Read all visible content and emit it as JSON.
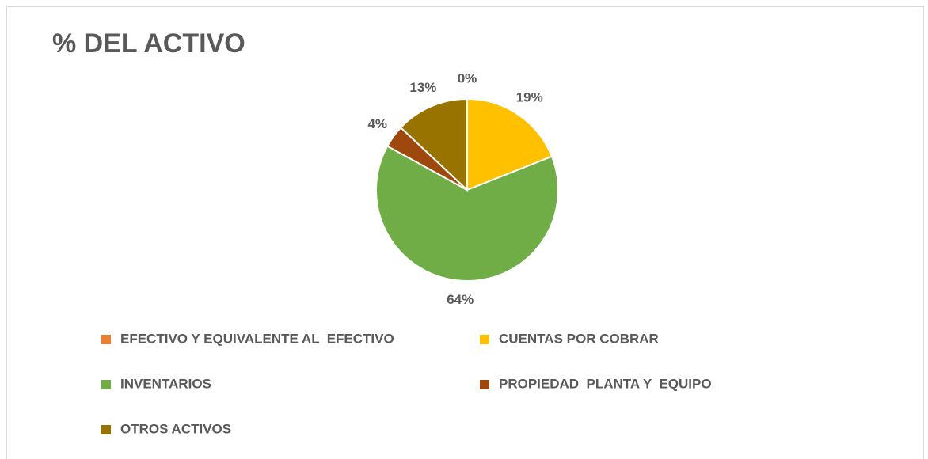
{
  "chart_data": {
    "type": "pie",
    "title": "% DEL ACTIVO",
    "categories": [
      "EFECTIVO Y EQUIVALENTE AL  EFECTIVO",
      "CUENTAS POR COBRAR",
      "INVENTARIOS",
      "PROPIEDAD  PLANTA Y  EQUIPO",
      "OTROS ACTIVOS"
    ],
    "values": [
      0,
      19,
      64,
      4,
      13
    ],
    "value_labels": [
      "0%",
      "19%",
      "64%",
      "4%",
      "13%"
    ],
    "colors": [
      "#ed7d31",
      "#ffc000",
      "#70ad47",
      "#9e480e",
      "#997300"
    ],
    "legend": "bottom"
  }
}
